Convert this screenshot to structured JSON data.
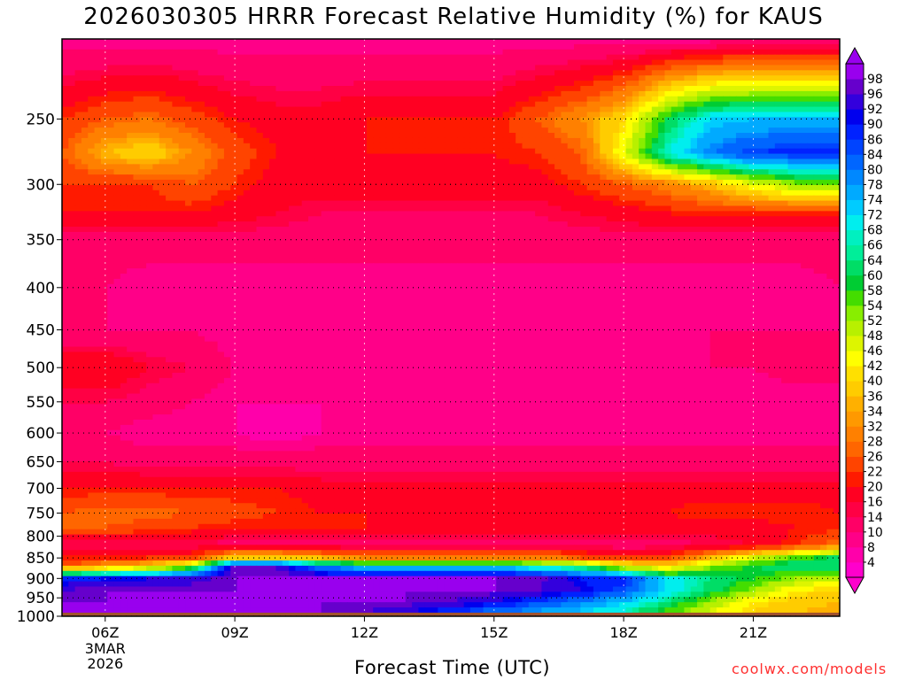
{
  "chart_data": {
    "type": "heatmap",
    "title": "2026030305 HRRR Forecast Relative Humidity (%) for KAUS",
    "xlabel": "Forecast Time (UTC)",
    "ylabel": "",
    "credit": "coolwx.com/models",
    "x_ticks": [
      {
        "hour": 6,
        "label": "06Z",
        "sub": [
          "3MAR",
          "2026"
        ]
      },
      {
        "hour": 9,
        "label": "09Z"
      },
      {
        "hour": 12,
        "label": "12Z"
      },
      {
        "hour": 15,
        "label": "15Z"
      },
      {
        "hour": 18,
        "label": "18Z"
      },
      {
        "hour": 21,
        "label": "21Z"
      }
    ],
    "xlim": [
      5.0,
      23.0
    ],
    "y_ticks": [
      250,
      300,
      350,
      400,
      450,
      500,
      550,
      600,
      650,
      700,
      750,
      800,
      850,
      900,
      950,
      1000
    ],
    "ylim_hPa": [
      200,
      1000
    ],
    "yscale": "log-pressure (inverted)",
    "grid": true,
    "surface_pressure_hPa": 990,
    "colorbar": {
      "labels": [
        4,
        8,
        10,
        14,
        16,
        20,
        22,
        26,
        28,
        32,
        34,
        36,
        40,
        42,
        46,
        48,
        52,
        54,
        58,
        60,
        64,
        66,
        68,
        72,
        74,
        78,
        80,
        84,
        86,
        90,
        92,
        96,
        98
      ],
      "colors": [
        "#ff00cc",
        "#ff00aa",
        "#ff0088",
        "#ff0066",
        "#ff0044",
        "#ff0022",
        "#ff1a00",
        "#ff4400",
        "#ff6600",
        "#ff8000",
        "#ff9900",
        "#ffb000",
        "#ffcc00",
        "#ffe000",
        "#ffff00",
        "#ddf500",
        "#b8f000",
        "#88ee00",
        "#44dd00",
        "#00cc33",
        "#00dd66",
        "#00ee99",
        "#00f0c0",
        "#00eeee",
        "#00ccff",
        "#00aaff",
        "#0088ff",
        "#0066ff",
        "#0044ff",
        "#0022ff",
        "#0000ee",
        "#3300dd",
        "#6600cc",
        "#9900ee"
      ],
      "extend": "both"
    },
    "rh_pct": {
      "pressure_levels_hPa": [
        200,
        250,
        275,
        300,
        325,
        350,
        400,
        450,
        500,
        550,
        600,
        650,
        700,
        750,
        780,
        820,
        850,
        870,
        900,
        930,
        960,
        990
      ],
      "hours": [
        5,
        6,
        7,
        8,
        9,
        10,
        11,
        12,
        13,
        14,
        15,
        16,
        17,
        18,
        19,
        20,
        21,
        22,
        23
      ],
      "values": [
        [
          8,
          8,
          8,
          8,
          8,
          8,
          8,
          8,
          8,
          8,
          8,
          8,
          8,
          8,
          8,
          8,
          10,
          10,
          10
        ],
        [
          22,
          26,
          28,
          24,
          20,
          18,
          18,
          20,
          20,
          20,
          20,
          26,
          32,
          40,
          60,
          72,
          74,
          74,
          74
        ],
        [
          26,
          36,
          40,
          32,
          24,
          20,
          20,
          20,
          20,
          20,
          20,
          22,
          26,
          46,
          68,
          80,
          86,
          88,
          88
        ],
        [
          22,
          22,
          22,
          26,
          22,
          18,
          18,
          18,
          18,
          18,
          18,
          18,
          22,
          26,
          30,
          36,
          46,
          52,
          52
        ],
        [
          20,
          20,
          20,
          20,
          18,
          16,
          14,
          14,
          14,
          14,
          14,
          14,
          16,
          18,
          20,
          22,
          22,
          22,
          22
        ],
        [
          12,
          12,
          12,
          12,
          12,
          12,
          12,
          12,
          12,
          12,
          12,
          12,
          12,
          12,
          12,
          12,
          12,
          12,
          12
        ],
        [
          10,
          10,
          8,
          8,
          8,
          8,
          8,
          8,
          8,
          8,
          8,
          8,
          8,
          8,
          8,
          8,
          8,
          8,
          10
        ],
        [
          10,
          10,
          10,
          10,
          8,
          8,
          8,
          8,
          8,
          8,
          8,
          8,
          8,
          10,
          10,
          10,
          10,
          10,
          10
        ],
        [
          20,
          20,
          16,
          14,
          10,
          8,
          8,
          8,
          8,
          8,
          8,
          8,
          8,
          8,
          8,
          10,
          10,
          12,
          12
        ],
        [
          14,
          14,
          12,
          10,
          8,
          8,
          8,
          8,
          8,
          8,
          8,
          8,
          8,
          8,
          8,
          8,
          8,
          8,
          8
        ],
        [
          10,
          10,
          8,
          8,
          8,
          6,
          8,
          8,
          8,
          8,
          8,
          8,
          8,
          8,
          8,
          8,
          8,
          8,
          8
        ],
        [
          14,
          14,
          12,
          12,
          12,
          12,
          12,
          12,
          12,
          12,
          12,
          12,
          12,
          12,
          12,
          12,
          12,
          12,
          12
        ],
        [
          20,
          20,
          20,
          20,
          20,
          20,
          18,
          18,
          18,
          18,
          18,
          18,
          18,
          18,
          18,
          18,
          18,
          18,
          18
        ],
        [
          26,
          28,
          28,
          26,
          24,
          22,
          20,
          20,
          20,
          20,
          20,
          20,
          20,
          20,
          20,
          22,
          22,
          22,
          20
        ],
        [
          26,
          26,
          24,
          22,
          20,
          20,
          20,
          20,
          18,
          18,
          18,
          18,
          18,
          18,
          18,
          18,
          18,
          20,
          20
        ],
        [
          14,
          14,
          14,
          14,
          12,
          12,
          12,
          12,
          12,
          12,
          12,
          12,
          12,
          12,
          12,
          14,
          16,
          22,
          30
        ],
        [
          22,
          22,
          22,
          24,
          40,
          40,
          36,
          32,
          32,
          32,
          32,
          32,
          26,
          22,
          24,
          36,
          48,
          56,
          62
        ],
        [
          26,
          32,
          40,
          52,
          98,
          96,
          80,
          72,
          72,
          72,
          72,
          66,
          60,
          46,
          40,
          52,
          60,
          64,
          64
        ],
        [
          88,
          90,
          92,
          94,
          98,
          98,
          98,
          98,
          98,
          98,
          98,
          98,
          90,
          88,
          70,
          64,
          58,
          52,
          48
        ],
        [
          96,
          98,
          98,
          98,
          98,
          98,
          98,
          98,
          98,
          98,
          98,
          96,
          92,
          84,
          72,
          62,
          52,
          42,
          40
        ],
        [
          98,
          98,
          98,
          98,
          98,
          98,
          98,
          98,
          98,
          96,
          92,
          86,
          80,
          74,
          64,
          52,
          42,
          38,
          36
        ],
        [
          98,
          98,
          98,
          98,
          98,
          98,
          98,
          96,
          92,
          86,
          80,
          76,
          72,
          66,
          56,
          46,
          40,
          36,
          34
        ]
      ]
    }
  }
}
